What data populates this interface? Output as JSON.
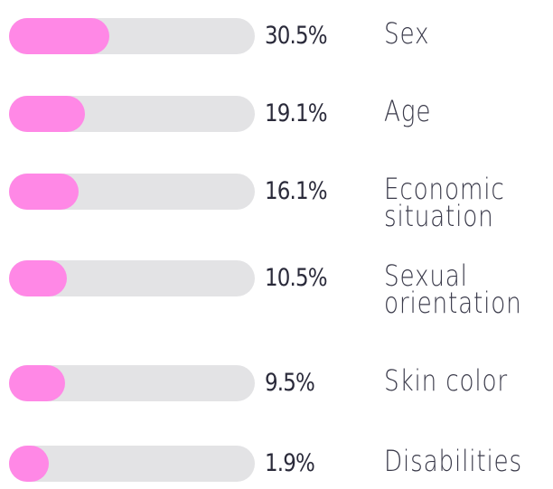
{
  "chart_data": {
    "type": "bar",
    "orientation": "horizontal",
    "categories": [
      "Sex",
      "Age",
      "Economic situation",
      "Sexual orientation",
      "Skin color",
      "Disabilities"
    ],
    "values": [
      30.5,
      19.1,
      16.1,
      10.5,
      9.5,
      1.9
    ],
    "value_labels": [
      "30.5%",
      "19.1%",
      "16.1%",
      "10.5%",
      "9.5%",
      "1.9%"
    ],
    "xlim": [
      0,
      100
    ],
    "color": "#ff88e6",
    "track_color": "#e3e3e5"
  }
}
